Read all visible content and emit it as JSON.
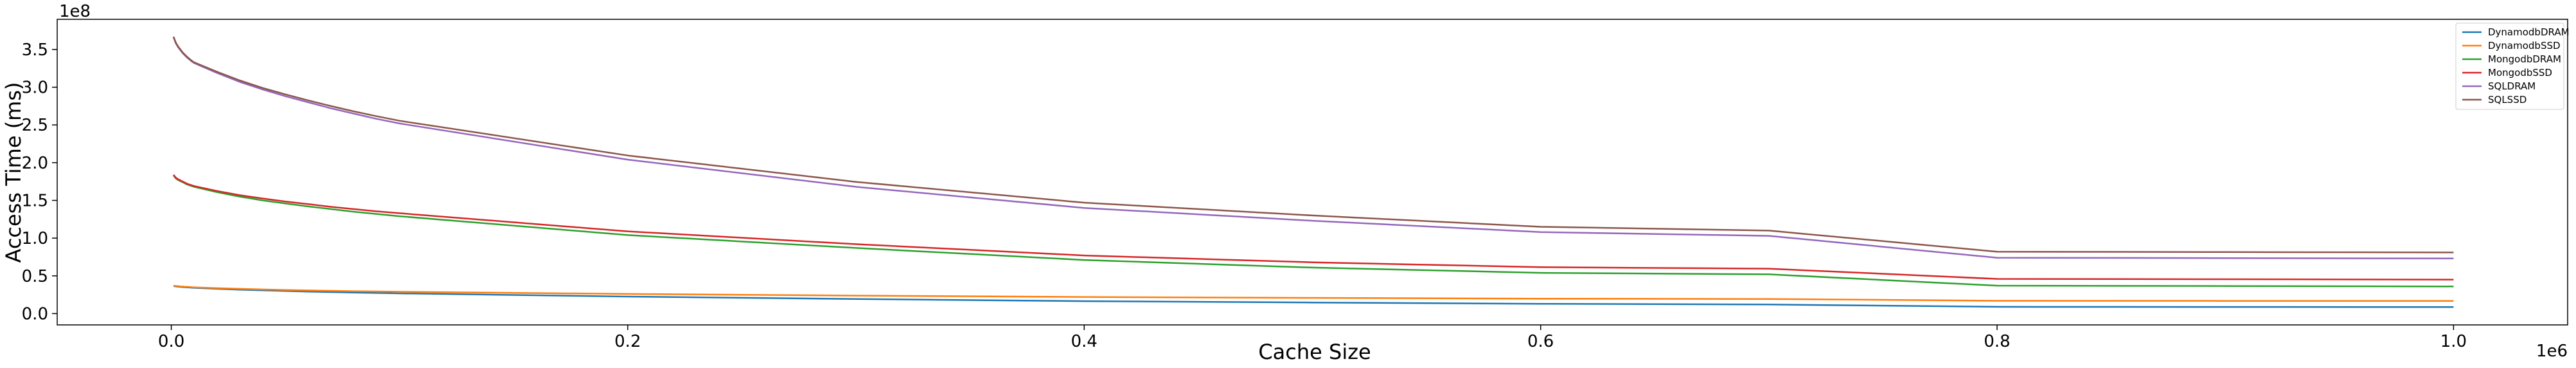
{
  "chart_data": {
    "type": "line",
    "title": "",
    "xlabel": "Cache Size",
    "ylabel": "Access Time (ms)",
    "x_multiplier": "1e6",
    "y_multiplier": "1e8",
    "xlim": [
      -50000,
      1050000
    ],
    "ylim": [
      -15000000,
      390000000
    ],
    "xticks": [
      0,
      200000,
      400000,
      600000,
      800000,
      1000000
    ],
    "xtick_labels": [
      "0.0",
      "0.2",
      "0.4",
      "0.6",
      "0.8",
      "1.0"
    ],
    "yticks": [
      0,
      50000000,
      100000000,
      150000000,
      200000000,
      250000000,
      300000000,
      350000000
    ],
    "ytick_labels": [
      "0.0",
      "0.5",
      "1.0",
      "1.5",
      "2.0",
      "2.5",
      "3.0",
      "3.5"
    ],
    "grid": false,
    "legend_position": "top-right",
    "x": [
      1000,
      2000,
      3000,
      4000,
      5000,
      6000,
      7000,
      8000,
      9000,
      10000,
      20000,
      30000,
      40000,
      50000,
      60000,
      70000,
      80000,
      90000,
      100000,
      200000,
      300000,
      400000,
      500000,
      600000,
      700000,
      800000,
      900000,
      1000000
    ],
    "series": [
      {
        "name": "DynamodbDRAM",
        "color": "#1f77b4",
        "values": [
          36500000,
          36000000,
          35700000,
          35400000,
          35100000,
          34900000,
          34700000,
          34500000,
          34300000,
          34100000,
          32800000,
          31700000,
          30800000,
          30000000,
          29200000,
          28500000,
          27900000,
          27300000,
          26800000,
          22500000,
          19300000,
          16500000,
          14700000,
          13000000,
          12000000,
          9000000,
          8800000,
          8600000
        ]
      },
      {
        "name": "DynamodbSSD",
        "color": "#ff7f0e",
        "values": [
          37000000,
          36600000,
          36300000,
          36000000,
          35800000,
          35600000,
          35400000,
          35200000,
          35000000,
          34800000,
          33700000,
          32800000,
          32000000,
          31300000,
          30700000,
          30200000,
          29700000,
          29300000,
          28900000,
          26000000,
          23800000,
          22000000,
          20800000,
          19800000,
          19400000,
          17000000,
          16800000,
          16700000
        ]
      },
      {
        "name": "MongodbDRAM",
        "color": "#2ca02c",
        "values": [
          183000000,
          179000000,
          177000000,
          175500000,
          174000000,
          172500000,
          171000000,
          170000000,
          169000000,
          168000000,
          161000000,
          155000000,
          150000000,
          146000000,
          142000000,
          138500000,
          135000000,
          132000000,
          129000000,
          104000000,
          87000000,
          71000000,
          61000000,
          54000000,
          52000000,
          37000000,
          36500000,
          36000000
        ]
      },
      {
        "name": "MongodbSSD",
        "color": "#d62728",
        "values": [
          184000000,
          180000000,
          178000000,
          176500000,
          175000000,
          173500000,
          172000000,
          171000000,
          170000000,
          169000000,
          162500000,
          157000000,
          152500000,
          148500000,
          145000000,
          141500000,
          138500000,
          135500000,
          133000000,
          109000000,
          92000000,
          77000000,
          68000000,
          61500000,
          59500000,
          46000000,
          45500000,
          45000000
        ]
      },
      {
        "name": "SQLDRAM",
        "color": "#9467bd",
        "values": [
          366000000,
          358000000,
          353000000,
          349000000,
          345000000,
          342000000,
          339000000,
          336500000,
          334000000,
          332000000,
          319000000,
          307000000,
          297000000,
          288000000,
          280000000,
          272000000,
          265000000,
          258000000,
          252000000,
          204000000,
          168000000,
          140000000,
          123000000,
          108000000,
          103000000,
          74000000,
          73500000,
          73000000
        ]
      },
      {
        "name": "SQLSSD",
        "color": "#8c564b",
        "values": [
          367000000,
          359000000,
          354000000,
          350000000,
          346000000,
          343000000,
          340000000,
          337500000,
          335000000,
          333000000,
          320500000,
          309000000,
          299000000,
          290500000,
          282500000,
          275000000,
          268000000,
          261500000,
          255500000,
          209500000,
          174500000,
          147000000,
          130000000,
          115000000,
          110000000,
          82000000,
          81500000,
          81000000
        ]
      }
    ]
  }
}
